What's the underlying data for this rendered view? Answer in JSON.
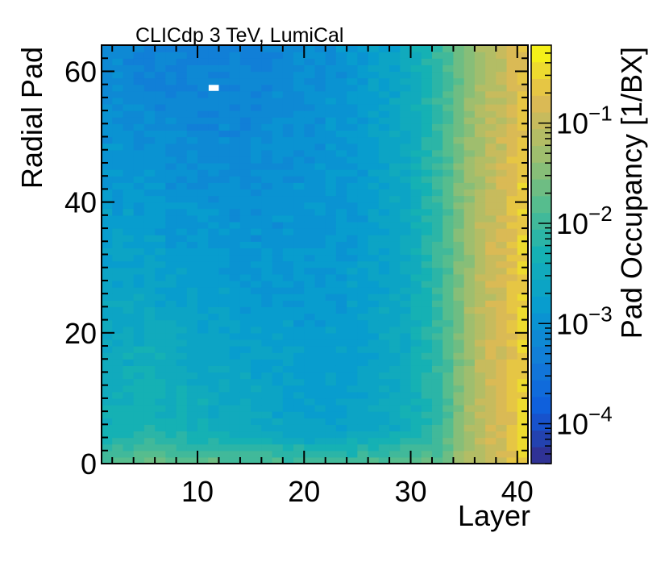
{
  "chart_data": {
    "type": "heatmap",
    "title": "CLICdp   3 TeV, LumiCal",
    "xlabel": "Layer",
    "ylabel": "Radial Pad",
    "zlabel": "Pad Occupancy [1/BX]",
    "x_range": [
      1,
      41
    ],
    "y_range": [
      0,
      64
    ],
    "z_range": [
      4e-05,
      0.6
    ],
    "z_scale": "log",
    "x_bins": 40,
    "y_bins": 64,
    "x_ticks": [
      "10",
      "20",
      "30",
      "40"
    ],
    "y_ticks": [
      "0",
      "20",
      "40",
      "60"
    ],
    "z_ticks": [
      {
        "base": "10",
        "exp": "−4",
        "value": 0.0001
      },
      {
        "base": "10",
        "exp": "−3",
        "value": 0.001
      },
      {
        "base": "10",
        "exp": "−2",
        "value": 0.01
      },
      {
        "base": "10",
        "exp": "−1",
        "value": 0.1
      }
    ],
    "empty_cells": [
      [
        11,
        57
      ]
    ],
    "occupancy_profile": {
      "layers": [
        1,
        5,
        10,
        15,
        20,
        25,
        30,
        33,
        35,
        37,
        39,
        40
      ],
      "pad0": [
        0.012,
        0.02,
        0.02,
        0.015,
        0.012,
        0.012,
        0.015,
        0.02,
        0.05,
        0.1,
        0.15,
        0.3
      ],
      "pad5": [
        0.004,
        0.006,
        0.004,
        0.003,
        0.002,
        0.002,
        0.004,
        0.01,
        0.04,
        0.1,
        0.15,
        0.3
      ],
      "pad30": [
        0.002,
        0.002,
        0.0015,
        0.0012,
        0.0012,
        0.0015,
        0.003,
        0.01,
        0.04,
        0.1,
        0.15,
        0.3
      ],
      "pad60": [
        0.0008,
        0.0006,
        0.0005,
        0.0006,
        0.0008,
        0.0012,
        0.003,
        0.01,
        0.03,
        0.06,
        0.1,
        0.2
      ]
    }
  }
}
